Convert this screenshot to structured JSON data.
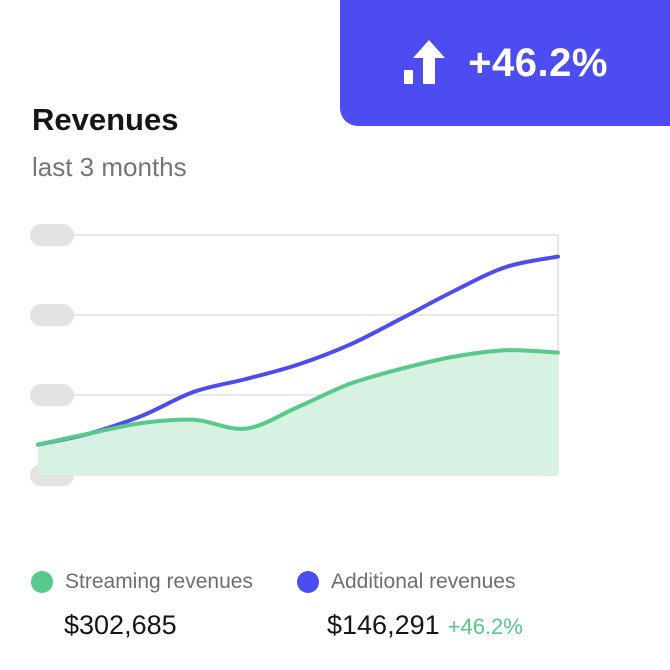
{
  "badge": {
    "icon": "chart-up-arrow-icon",
    "value": "+46.2%",
    "color": "#4c4cf0"
  },
  "chart_data": {
    "type": "area",
    "title": "Revenues",
    "subtitle": "last 3 months",
    "xlabel": "",
    "ylabel": "",
    "ylim": [
      0,
      3
    ],
    "grid": true,
    "legend": "bottom",
    "x": [
      0,
      0.1,
      0.2,
      0.3,
      0.4,
      0.5,
      0.6,
      0.7,
      0.8,
      0.9,
      1.0
    ],
    "series": [
      {
        "name": "Streaming revenues",
        "color": "#56c98b",
        "fill": "#d7f1e3",
        "values": [
          0.38,
          0.52,
          0.65,
          0.69,
          0.58,
          0.85,
          1.14,
          1.33,
          1.48,
          1.56,
          1.53
        ]
      },
      {
        "name": "Additional revenues",
        "color": "#4c4cf0",
        "values": [
          0.38,
          0.52,
          0.74,
          1.04,
          1.2,
          1.38,
          1.63,
          1.96,
          2.3,
          2.6,
          2.73
        ]
      }
    ]
  },
  "legend": {
    "streaming": {
      "label": "Streaming revenues",
      "amount": "$302,685"
    },
    "additional": {
      "label": "Additional revenues",
      "amount": "$146,291",
      "change": "+46.2%"
    }
  }
}
